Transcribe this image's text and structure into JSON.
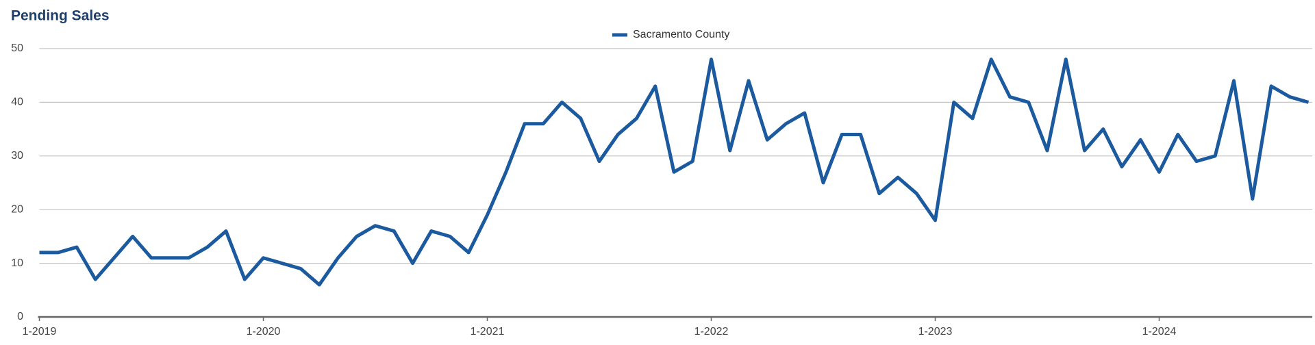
{
  "chart_data": {
    "type": "line",
    "title": "Pending Sales",
    "categories": [
      "1-2019",
      null,
      null,
      null,
      null,
      null,
      null,
      null,
      null,
      null,
      null,
      null,
      "1-2020",
      null,
      null,
      null,
      null,
      null,
      null,
      null,
      null,
      null,
      null,
      null,
      "1-2021",
      null,
      null,
      null,
      null,
      null,
      null,
      null,
      null,
      null,
      null,
      null,
      "1-2022",
      null,
      null,
      null,
      null,
      null,
      null,
      null,
      null,
      null,
      null,
      null,
      "1-2023",
      null,
      null,
      null,
      null,
      null,
      null,
      null,
      null,
      null,
      null,
      null,
      "1-2024",
      null,
      null,
      null,
      null,
      null,
      null,
      null,
      null
    ],
    "series": [
      {
        "name": "Sacramento County",
        "color": "#1b5a9e",
        "values": [
          12,
          12,
          13,
          7,
          11,
          15,
          11,
          11,
          11,
          13,
          16,
          7,
          11,
          10,
          9,
          6,
          11,
          15,
          17,
          16,
          10,
          16,
          15,
          12,
          19,
          27,
          36,
          36,
          40,
          37,
          29,
          34,
          37,
          43,
          27,
          29,
          48,
          31,
          44,
          33,
          36,
          38,
          25,
          34,
          34,
          23,
          26,
          23,
          18,
          40,
          37,
          48,
          41,
          40,
          31,
          48,
          31,
          35,
          28,
          33,
          27,
          34,
          29,
          30,
          44,
          22,
          43,
          41,
          40
        ]
      }
    ],
    "ylim": [
      0,
      50
    ],
    "yticks": [
      0,
      10,
      20,
      30,
      40,
      50
    ],
    "grid": true,
    "legend": "top"
  }
}
